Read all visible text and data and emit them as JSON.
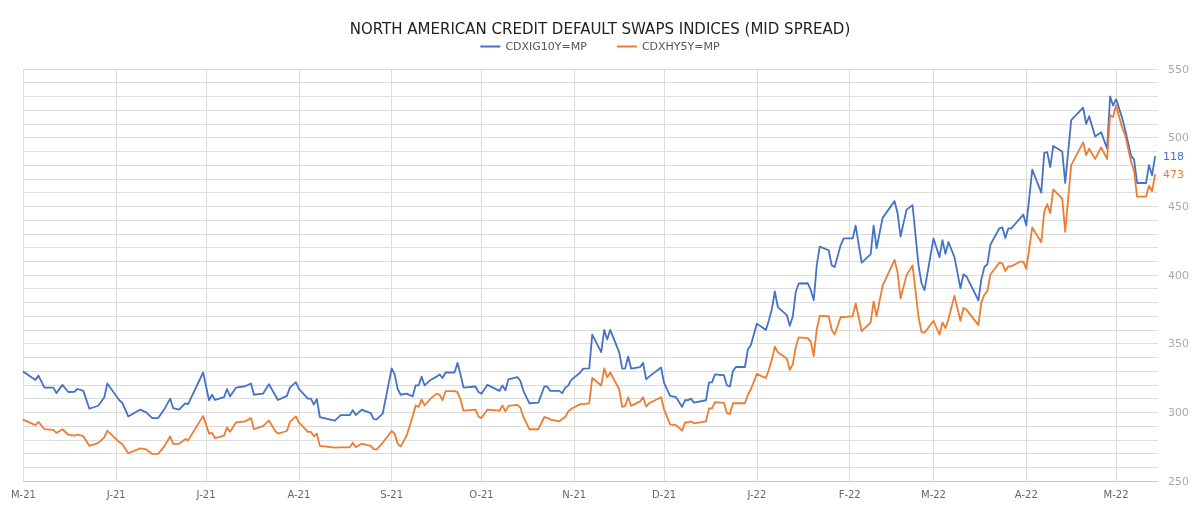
{
  "chart_data": {
    "type": "line",
    "title": "NORTH AMERICAN CREDIT DEFAULT SWAPS INDICES (MID SPREAD)",
    "x": [
      "2021-05-01",
      "2021-05-05",
      "2021-05-06",
      "2021-05-08",
      "2021-05-11",
      "2021-05-12",
      "2021-05-14",
      "2021-05-16",
      "2021-05-18",
      "2021-05-19",
      "2021-05-21",
      "2021-05-23",
      "2021-05-26",
      "2021-05-28",
      "2021-05-29",
      "2021-06-02",
      "2021-06-03",
      "2021-06-05",
      "2021-06-09",
      "2021-06-11",
      "2021-06-13",
      "2021-06-15",
      "2021-06-17",
      "2021-06-19",
      "2021-06-20",
      "2021-06-22",
      "2021-06-24",
      "2021-06-25",
      "2021-06-30",
      "2021-07-02",
      "2021-07-03",
      "2021-07-04",
      "2021-07-07",
      "2021-07-08",
      "2021-07-09",
      "2021-07-11",
      "2021-07-14",
      "2021-07-16",
      "2021-07-17",
      "2021-07-20",
      "2021-07-22",
      "2021-07-24",
      "2021-07-25",
      "2021-07-28",
      "2021-07-29",
      "2021-07-31",
      "2021-08-01",
      "2021-08-04",
      "2021-08-05",
      "2021-08-06",
      "2021-08-07",
      "2021-08-08",
      "2021-08-13",
      "2021-08-15",
      "2021-08-18",
      "2021-08-19",
      "2021-08-20",
      "2021-08-22",
      "2021-08-25",
      "2021-08-26",
      "2021-08-27",
      "2021-08-29",
      "2021-09-01",
      "2021-09-02",
      "2021-09-03",
      "2021-09-04",
      "2021-09-06",
      "2021-09-08",
      "2021-09-09",
      "2021-09-10",
      "2021-09-11",
      "2021-09-12",
      "2021-09-14",
      "2021-09-16",
      "2021-09-17",
      "2021-09-18",
      "2021-09-19",
      "2021-09-22",
      "2021-09-23",
      "2021-09-24",
      "2021-09-25",
      "2021-09-29",
      "2021-09-30",
      "2021-10-01",
      "2021-10-03",
      "2021-10-07",
      "2021-10-08",
      "2021-10-09",
      "2021-10-10",
      "2021-10-13",
      "2021-10-14",
      "2021-10-15",
      "2021-10-17",
      "2021-10-20",
      "2021-10-22",
      "2021-10-23",
      "2021-10-24",
      "2021-10-27",
      "2021-10-28",
      "2021-10-29",
      "2021-10-30",
      "2021-10-31",
      "2021-11-03",
      "2021-11-04",
      "2021-11-06",
      "2021-11-07",
      "2021-11-10",
      "2021-11-11",
      "2021-11-12",
      "2021-11-13",
      "2021-11-16",
      "2021-11-17",
      "2021-11-18",
      "2021-11-19",
      "2021-11-20",
      "2021-11-23",
      "2021-11-24",
      "2021-11-25",
      "2021-11-26",
      "2021-11-30",
      "2021-12-01",
      "2021-12-03",
      "2021-12-05",
      "2021-12-07",
      "2021-12-08",
      "2021-12-09",
      "2021-12-10",
      "2021-12-11",
      "2021-12-15",
      "2021-12-16",
      "2021-12-17",
      "2021-12-18",
      "2021-12-21",
      "2021-12-22",
      "2021-12-23",
      "2021-12-24",
      "2021-12-25",
      "2021-12-28",
      "2021-12-29",
      "2021-12-30",
      "2022-01-01",
      "2022-01-04",
      "2022-01-05",
      "2022-01-06",
      "2022-01-07",
      "2022-01-08",
      "2022-01-11",
      "2022-01-12",
      "2022-01-13",
      "2022-01-14",
      "2022-01-15",
      "2022-01-18",
      "2022-01-19",
      "2022-01-20",
      "2022-01-21",
      "2022-01-22",
      "2022-01-25",
      "2022-01-26",
      "2022-01-27",
      "2022-01-29",
      "2022-01-30",
      "2022-02-02",
      "2022-02-03",
      "2022-02-05",
      "2022-02-08",
      "2022-02-09",
      "2022-02-10",
      "2022-02-12",
      "2022-02-16",
      "2022-02-17",
      "2022-02-18",
      "2022-02-20",
      "2022-02-22",
      "2022-02-24",
      "2022-02-25",
      "2022-02-26",
      "2022-03-01",
      "2022-03-03",
      "2022-03-04",
      "2022-03-05",
      "2022-03-06",
      "2022-03-08",
      "2022-03-10",
      "2022-03-11",
      "2022-03-12",
      "2022-03-16",
      "2022-03-17",
      "2022-03-18",
      "2022-03-19",
      "2022-03-20",
      "2022-03-23",
      "2022-03-24",
      "2022-03-25",
      "2022-03-26",
      "2022-03-27",
      "2022-03-30",
      "2022-03-31",
      "2022-04-01",
      "2022-04-03",
      "2022-04-06",
      "2022-04-07",
      "2022-04-08",
      "2022-04-09",
      "2022-04-10",
      "2022-04-13",
      "2022-04-14",
      "2022-04-16",
      "2022-04-20",
      "2022-04-21",
      "2022-04-22",
      "2022-04-24",
      "2022-04-26",
      "2022-04-28",
      "2022-04-29",
      "2022-04-30",
      "2022-05-01",
      "2022-05-03",
      "2022-05-04",
      "2022-05-06",
      "2022-05-07",
      "2022-05-08",
      "2022-05-11",
      "2022-05-12",
      "2022-05-13",
      "2022-05-14"
    ],
    "series": [
      {
        "name": "CDXIG10Y=MP",
        "color": "#4472c4",
        "axis": "y2",
        "values": [
          39.8,
          36.8,
          38.4,
          34,
          34,
          32,
          35,
          32.4,
          32.5,
          33.5,
          32.8,
          26.3,
          27.4,
          30.5,
          35.5,
          29.4,
          28.5,
          23.5,
          26,
          25,
          22.9,
          22.9,
          26,
          30,
          26.5,
          26,
          28.3,
          28,
          39.5,
          29.4,
          31.4,
          29.5,
          30.5,
          33.5,
          30.8,
          34,
          34.5,
          35.5,
          31.4,
          31.8,
          35.2,
          31.4,
          29.5,
          31,
          34,
          36,
          33.5,
          30,
          30,
          27.8,
          29.8,
          23.3,
          22,
          24,
          24,
          25.8,
          24,
          26,
          24.7,
          22.5,
          22.4,
          24.5,
          41,
          38.8,
          33.5,
          31.4,
          31.8,
          30.8,
          34.8,
          34.8,
          38,
          34.8,
          36.8,
          38,
          38.8,
          37.5,
          39.5,
          39.5,
          43,
          38.8,
          34,
          34.4,
          32.4,
          31.8,
          35,
          32.8,
          34.8,
          33,
          37,
          37.8,
          36.4,
          32.8,
          28.3,
          28.5,
          34.4,
          34.4,
          32.8,
          32.8,
          32,
          34,
          34.8,
          36.8,
          39.5,
          40.9,
          41,
          53.3,
          46.9,
          55,
          51.5,
          55,
          46.9,
          40.9,
          41,
          45.3,
          40.9,
          41.5,
          43,
          37,
          38,
          41.3,
          35.7,
          31,
          30.5,
          27,
          29.4,
          29.4,
          30,
          28.5,
          29.4,
          35.9,
          35.9,
          38.8,
          38.5,
          34.8,
          34.4,
          40,
          41.5,
          41.5,
          47.9,
          49.5,
          57.3,
          55,
          58.4,
          62.5,
          69,
          63.3,
          60.4,
          56.5,
          59.9,
          68.9,
          71.9,
          72,
          69.5,
          65.8,
          78.5,
          85.3,
          84,
          78.5,
          77.9,
          85.9,
          88.3,
          88.3,
          93,
          79.5,
          82.5,
          93,
          84.8,
          95.8,
          101.9,
          97.5,
          89,
          98.8,
          100.4,
          78.5,
          72,
          69.5,
          88.3,
          81.5,
          87.7,
          82.7,
          87,
          81.5,
          70.2,
          75.2,
          74.5,
          65.8,
          73.5,
          77.9,
          78.9,
          86,
          92,
          92.3,
          88.5,
          92,
          92,
          95.7,
          97,
          93,
          113.4,
          105,
          119.5,
          119.7,
          114.3,
          122,
          120,
          108.5,
          131.4,
          135.9,
          130,
          132.8,
          125.4,
          127,
          121,
          140,
          136.7,
          139,
          132.3,
          128,
          118.4,
          117,
          108.5,
          108.5,
          115,
          111.3,
          118
        ],
        "value_labels": [
          null,
          null,
          null,
          null,
          null,
          null,
          null,
          null,
          null,
          null,
          null,
          null,
          null,
          null,
          null,
          null,
          null,
          null,
          null,
          null,
          null,
          null,
          null,
          null,
          null,
          null,
          null,
          null,
          null,
          null,
          null,
          null,
          null,
          null,
          null,
          null,
          null,
          null,
          null,
          null,
          null,
          null,
          null,
          null,
          null,
          null,
          null,
          null,
          null,
          null,
          null,
          null,
          null,
          null,
          null,
          null,
          null,
          null,
          null,
          null,
          null,
          null,
          null,
          null,
          null,
          null,
          null,
          null,
          null,
          null,
          null,
          null,
          null,
          null,
          null,
          null,
          null,
          null,
          null,
          null,
          null,
          null,
          null,
          null,
          null,
          null,
          null,
          null,
          null,
          null,
          null,
          null,
          null,
          null,
          null,
          null,
          null,
          null,
          null,
          null,
          null,
          null,
          null,
          null,
          null,
          null,
          null,
          null,
          null,
          null,
          null,
          null,
          null,
          null,
          null,
          null,
          null,
          null,
          null,
          null,
          null,
          null,
          null,
          null,
          null,
          null,
          null,
          null,
          null,
          null,
          null,
          null,
          null,
          null,
          null,
          null,
          null,
          null,
          null,
          null,
          null,
          null,
          null,
          null,
          null,
          null,
          null,
          null,
          null,
          null,
          null,
          null,
          null,
          null,
          null,
          null,
          null,
          null,
          null,
          null,
          null,
          null,
          null,
          null,
          null,
          null,
          null,
          null,
          null,
          null,
          null,
          null,
          null,
          null,
          null,
          null,
          null,
          null,
          null,
          null,
          null,
          null,
          null,
          null,
          null,
          null,
          null,
          null,
          null,
          null,
          null,
          null,
          null,
          null,
          null,
          null,
          null,
          null,
          null,
          null,
          null,
          null,
          null,
          null,
          null,
          null,
          null,
          null,
          null,
          null,
          null,
          null,
          null,
          null,
          null,
          null,
          null,
          null,
          null,
          null,
          null,
          null,
          null,
          null,
          "118"
        ]
      },
      {
        "name": "CDXHY5Y=MP",
        "color": "#ed7d31",
        "values": [
          294.5,
          290.7,
          293,
          287.7,
          287.2,
          285,
          287.7,
          283.7,
          283,
          283.7,
          282.6,
          275.6,
          277.8,
          281.8,
          286.7,
          278.3,
          277,
          270.2,
          273.7,
          273,
          269.7,
          269.7,
          275,
          282.6,
          277,
          277,
          280.5,
          279.6,
          297.4,
          284.5,
          285,
          281.3,
          283,
          289,
          285.8,
          292.6,
          293.4,
          295.8,
          287.7,
          290,
          294,
          286.7,
          284.5,
          286.4,
          293,
          297,
          292.6,
          285.8,
          285.8,
          282.6,
          284.5,
          275.6,
          274.3,
          274.5,
          274.5,
          277.8,
          274.5,
          277.2,
          275.6,
          273.2,
          273,
          277.8,
          286.4,
          284.5,
          277.2,
          275,
          283,
          297,
          305,
          304,
          309.3,
          305,
          310,
          313.6,
          312.8,
          308.8,
          315.5,
          315.5,
          314.7,
          309.3,
          301.2,
          302,
          297,
          295.8,
          302,
          301.2,
          305,
          300.7,
          304.7,
          305.5,
          303.4,
          296.6,
          287.7,
          287.7,
          296.6,
          296,
          294.7,
          293.4,
          295.3,
          296.6,
          300.7,
          302.6,
          306,
          306,
          306.6,
          325,
          319.5,
          332,
          325.5,
          329,
          316.8,
          304,
          304.7,
          311,
          304.7,
          308,
          311,
          304.2,
          306.6,
          311,
          302,
          291.2,
          290.7,
          286.7,
          292.6,
          292.6,
          293.4,
          292,
          293.4,
          302.8,
          302.8,
          307.4,
          306.9,
          299.3,
          298.8,
          306.6,
          306.6,
          306.6,
          312.8,
          316.8,
          328,
          325,
          331,
          338.4,
          347.8,
          343.8,
          339.2,
          330.9,
          335,
          347.8,
          354.6,
          354,
          351.3,
          341,
          360.5,
          370.2,
          370,
          360,
          356.7,
          369.4,
          369.4,
          370,
          379.4,
          359.2,
          365.4,
          380.7,
          370,
          392.3,
          411,
          401.8,
          382.9,
          399.9,
          407,
          369.4,
          358.6,
          358,
          366.7,
          356.5,
          365.4,
          361.3,
          368,
          385,
          366.7,
          376,
          374.8,
          363.5,
          380.2,
          385.6,
          388.3,
          400.4,
          409,
          408.5,
          403,
          406.3,
          406.3,
          409.8,
          409.8,
          404.4,
          434.6,
          423.9,
          446.2,
          451.6,
          444.9,
          462.4,
          455.7,
          431.4,
          480,
          496.6,
          487.2,
          492,
          484.5,
          492.9,
          484.5,
          516.3,
          515,
          523.6,
          507.4,
          502,
          482.6,
          475.9,
          457,
          457,
          465,
          461,
          473
        ],
        "value_labels": [
          null,
          null,
          null,
          null,
          null,
          null,
          null,
          null,
          null,
          null,
          null,
          null,
          null,
          null,
          null,
          null,
          null,
          null,
          null,
          null,
          null,
          null,
          null,
          null,
          null,
          null,
          null,
          null,
          null,
          null,
          null,
          null,
          null,
          null,
          null,
          null,
          null,
          null,
          null,
          null,
          null,
          null,
          null,
          null,
          null,
          null,
          null,
          null,
          null,
          null,
          null,
          null,
          null,
          null,
          null,
          null,
          null,
          null,
          null,
          null,
          null,
          null,
          null,
          null,
          null,
          null,
          null,
          null,
          null,
          null,
          null,
          null,
          null,
          null,
          null,
          null,
          null,
          null,
          null,
          null,
          null,
          null,
          null,
          null,
          null,
          null,
          null,
          null,
          null,
          null,
          null,
          null,
          null,
          null,
          null,
          null,
          null,
          null,
          null,
          null,
          null,
          null,
          null,
          null,
          null,
          null,
          null,
          null,
          null,
          null,
          null,
          null,
          null,
          null,
          null,
          null,
          null,
          null,
          null,
          null,
          null,
          null,
          null,
          null,
          null,
          null,
          null,
          null,
          null,
          null,
          null,
          null,
          null,
          null,
          null,
          null,
          null,
          null,
          null,
          null,
          null,
          null,
          null,
          null,
          null,
          null,
          null,
          null,
          null,
          null,
          null,
          null,
          null,
          null,
          null,
          null,
          null,
          null,
          null,
          null,
          null,
          null,
          null,
          null,
          null,
          null,
          null,
          null,
          null,
          null,
          null,
          null,
          null,
          null,
          null,
          null,
          null,
          null,
          null,
          null,
          null,
          null,
          null,
          null,
          null,
          null,
          null,
          null,
          null,
          null,
          null,
          null,
          null,
          null,
          null,
          null,
          null,
          null,
          null,
          null,
          null,
          null,
          null,
          null,
          null,
          null,
          null,
          null,
          null,
          null,
          null,
          null,
          null,
          null,
          null,
          null,
          null,
          null,
          null,
          null,
          null,
          null,
          null,
          null,
          "473"
        ]
      }
    ],
    "xlim": [
      "2021-05-01",
      "2022-05-15"
    ],
    "xticks": [
      {
        "value": "2021-05-01",
        "label": "M-21"
      },
      {
        "value": "2021-06-01",
        "label": "J-21"
      },
      {
        "value": "2021-07-01",
        "label": "J-21"
      },
      {
        "value": "2021-08-01",
        "label": "A-21"
      },
      {
        "value": "2021-09-01",
        "label": "S-21"
      },
      {
        "value": "2021-10-01",
        "label": "O-21"
      },
      {
        "value": "2021-11-01",
        "label": "N-21"
      },
      {
        "value": "2021-12-01",
        "label": "D-21"
      },
      {
        "value": "2022-01-01",
        "label": "J-22"
      },
      {
        "value": "2022-02-01",
        "label": "F-22"
      },
      {
        "value": "2022-03-01",
        "label": "M-22"
      },
      {
        "value": "2022-04-01",
        "label": "A-22"
      },
      {
        "value": "2022-05-01",
        "label": "M-22"
      }
    ],
    "ylim": [
      250,
      550
    ],
    "yticks": [
      250,
      {
        "value": 260,
        "label": null
      },
      {
        "value": 270,
        "label": null
      },
      {
        "value": 280,
        "label": null
      },
      {
        "value": 290,
        "label": null
      },
      300,
      {
        "value": 310,
        "label": null
      },
      {
        "value": 320,
        "label": null
      },
      {
        "value": 330,
        "label": null
      },
      {
        "value": 340,
        "label": null
      },
      350,
      {
        "value": 360,
        "label": null
      },
      {
        "value": 370,
        "label": null
      },
      {
        "value": 380,
        "label": null
      },
      {
        "value": 390,
        "label": null
      },
      400,
      {
        "value": 410,
        "label": null
      },
      {
        "value": 420,
        "label": null
      },
      {
        "value": 430,
        "label": null
      },
      {
        "value": 440,
        "label": null
      },
      450,
      {
        "value": 460,
        "label": null
      },
      {
        "value": 470,
        "label": null
      },
      {
        "value": 480,
        "label": null
      },
      {
        "value": 490,
        "label": null
      },
      500,
      {
        "value": 510,
        "label": null
      },
      {
        "value": 520,
        "label": null
      },
      {
        "value": 530,
        "label": null
      },
      {
        "value": 540,
        "label": null
      },
      550
    ],
    "y2lim": [
      0,
      150
    ],
    "tick_labels": "xy",
    "grid": true,
    "legend": "top",
    "marker": "none",
    "line_style": "solid"
  }
}
